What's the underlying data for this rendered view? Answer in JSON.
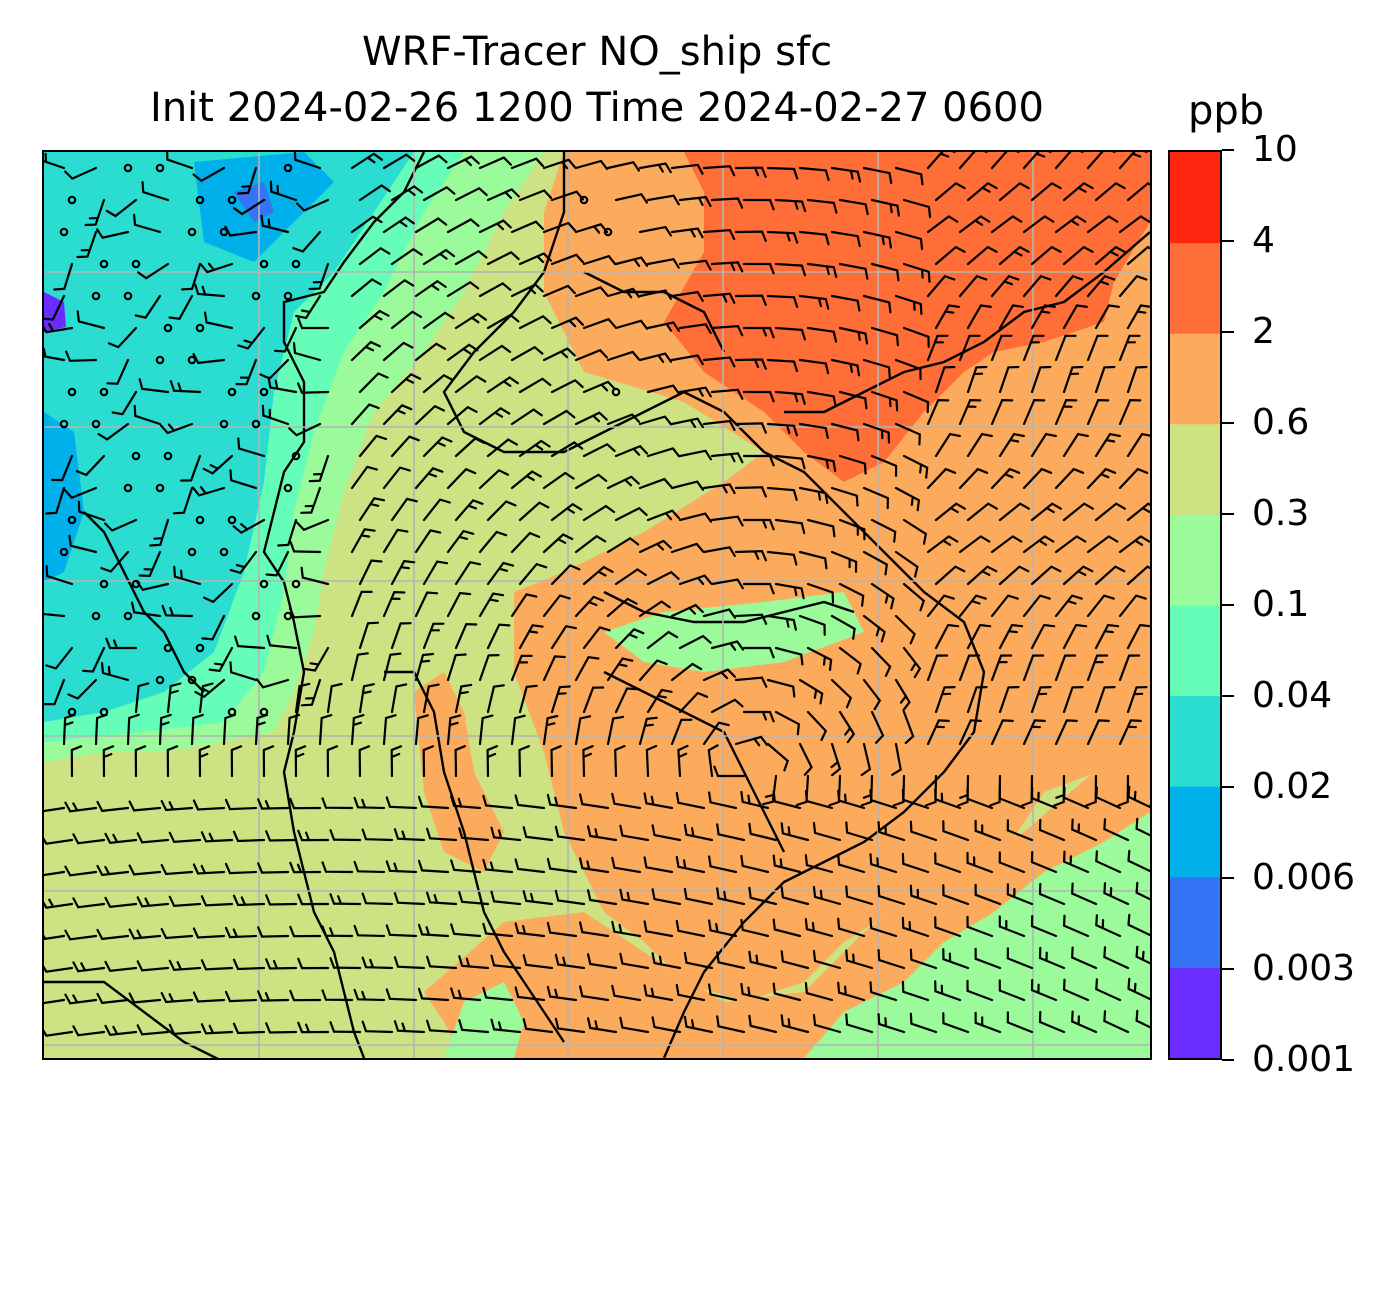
{
  "title": {
    "line1": "WRF-Tracer NO_ship sfc",
    "line2": "Init 2024-02-26 1200 Time 2024-02-27 0600"
  },
  "colorbar": {
    "unit": "ppb",
    "levels": [
      "0.001",
      "0.003",
      "0.006",
      "0.02",
      "0.04",
      "0.1",
      "0.3",
      "0.6",
      "2",
      "4",
      "10"
    ],
    "colors": [
      "#6a2cff",
      "#3574f5",
      "#00b0ea",
      "#2bdcd0",
      "#66fdb9",
      "#9bfb9b",
      "#cce283",
      "#fcab5d",
      "#ff6e37",
      "#ff2610"
    ]
  },
  "map": {
    "field": "NO_ship",
    "wind_barbs": true,
    "gridlines": true,
    "coastlines": true
  }
}
